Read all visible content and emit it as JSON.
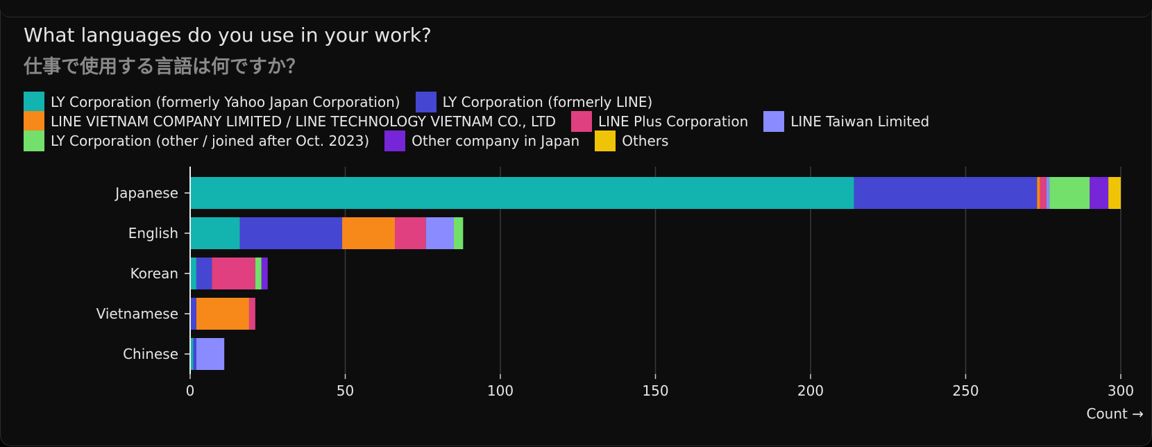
{
  "chart_data": {
    "type": "bar",
    "orientation": "horizontal",
    "stacked": true,
    "title": "What languages do you use in your work?",
    "subtitle": "仕事で使用する言語は何ですか？",
    "xlabel": "Count →",
    "ylabel": "",
    "xlim": [
      0,
      300
    ],
    "xticks": [
      0,
      50,
      100,
      150,
      200,
      250,
      300
    ],
    "grid": "vertical",
    "legend_position": "top-left",
    "categories": [
      "Japanese",
      "English",
      "Korean",
      "Vietnamese",
      "Chinese"
    ],
    "series": [
      {
        "name": "LY Corporation (formerly Yahoo Japan Corporation)",
        "color": "#13b3b0",
        "values": [
          214,
          16,
          2,
          0,
          1
        ]
      },
      {
        "name": "LY Corporation (formerly LINE)",
        "color": "#4546d2",
        "values": [
          59,
          33,
          5,
          2,
          1
        ]
      },
      {
        "name": "LINE VIETNAM COMPANY LIMITED / LINE TECHNOLOGY VIETNAM CO., LTD",
        "color": "#f7881a",
        "values": [
          1,
          17,
          0,
          17,
          0
        ]
      },
      {
        "name": "LINE Plus Corporation",
        "color": "#e0407f",
        "values": [
          2,
          10,
          14,
          2,
          0
        ]
      },
      {
        "name": "LINE Taiwan Limited",
        "color": "#8a8bff",
        "values": [
          1,
          9,
          0,
          0,
          9
        ]
      },
      {
        "name": "LY Corporation (other / joined after Oct. 2023)",
        "color": "#72e06a",
        "values": [
          13,
          3,
          2,
          0,
          0
        ]
      },
      {
        "name": "Other company in Japan",
        "color": "#7626d8",
        "values": [
          6,
          0,
          2,
          0,
          0
        ]
      },
      {
        "name": "Others",
        "color": "#efc407",
        "values": [
          4,
          0,
          0,
          0,
          0
        ]
      }
    ]
  }
}
